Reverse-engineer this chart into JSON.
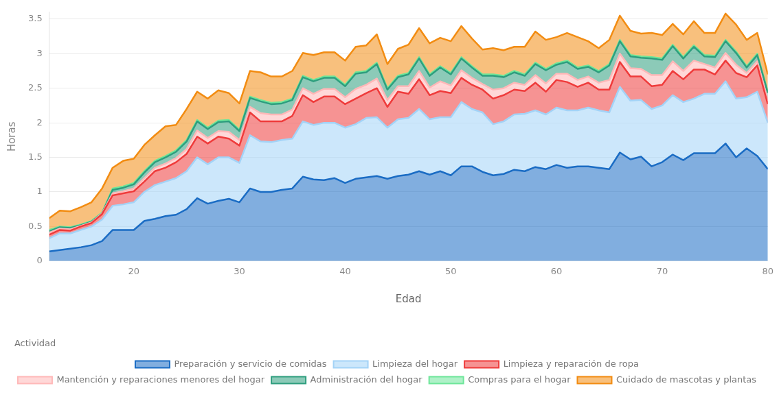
{
  "chart_data": {
    "type": "area",
    "stacked": true,
    "xlabel": "Edad",
    "ylabel": "Horas",
    "legend_title": "Actividad",
    "legend": "bottom",
    "grid": "y",
    "marker": "none",
    "x": [
      12,
      13,
      14,
      15,
      16,
      17,
      18,
      19,
      20,
      21,
      22,
      23,
      24,
      25,
      26,
      27,
      28,
      29,
      30,
      31,
      32,
      33,
      34,
      35,
      36,
      37,
      38,
      39,
      40,
      41,
      42,
      43,
      44,
      45,
      46,
      47,
      48,
      49,
      50,
      51,
      52,
      53,
      54,
      55,
      56,
      57,
      58,
      59,
      60,
      61,
      62,
      63,
      64,
      65,
      66,
      67,
      68,
      69,
      70,
      71,
      72,
      73,
      74,
      75,
      76,
      77,
      78,
      79,
      80
    ],
    "xlim": [
      12,
      80
    ],
    "xticks": [
      20,
      30,
      40,
      50,
      60,
      70,
      80
    ],
    "ylim": [
      0,
      3.6
    ],
    "yticks": [
      0,
      0.5,
      1,
      1.5,
      2,
      2.5,
      3,
      3.5
    ],
    "series": [
      {
        "name": "Preparación y servicio de comidas",
        "color": "#1a6cc4",
        "values": [
          0.14,
          0.16,
          0.18,
          0.2,
          0.23,
          0.29,
          0.45,
          0.45,
          0.45,
          0.58,
          0.61,
          0.65,
          0.67,
          0.75,
          0.91,
          0.83,
          0.87,
          0.9,
          0.85,
          1.05,
          1.0,
          1.0,
          1.03,
          1.05,
          1.22,
          1.18,
          1.17,
          1.2,
          1.13,
          1.19,
          1.21,
          1.23,
          1.19,
          1.23,
          1.25,
          1.3,
          1.25,
          1.3,
          1.24,
          1.37,
          1.37,
          1.29,
          1.24,
          1.26,
          1.32,
          1.3,
          1.36,
          1.33,
          1.39,
          1.35,
          1.37,
          1.37,
          1.35,
          1.33,
          1.57,
          1.47,
          1.51,
          1.37,
          1.43,
          1.54,
          1.46,
          1.56,
          1.56,
          1.56,
          1.7,
          1.5,
          1.63,
          1.52,
          1.33
        ]
      },
      {
        "name": "Limpieza del hogar",
        "color": "#a3d3f7",
        "values": [
          0.19,
          0.24,
          0.22,
          0.25,
          0.27,
          0.31,
          0.35,
          0.37,
          0.4,
          0.42,
          0.49,
          0.5,
          0.53,
          0.55,
          0.59,
          0.57,
          0.63,
          0.6,
          0.57,
          0.77,
          0.73,
          0.72,
          0.72,
          0.72,
          0.8,
          0.79,
          0.83,
          0.8,
          0.8,
          0.79,
          0.86,
          0.85,
          0.74,
          0.82,
          0.82,
          0.9,
          0.8,
          0.78,
          0.84,
          0.93,
          0.83,
          0.86,
          0.74,
          0.76,
          0.8,
          0.83,
          0.82,
          0.79,
          0.83,
          0.83,
          0.81,
          0.85,
          0.83,
          0.82,
          0.95,
          0.85,
          0.82,
          0.83,
          0.82,
          0.86,
          0.84,
          0.79,
          0.86,
          0.86,
          0.9,
          0.85,
          0.74,
          0.93,
          0.67
        ]
      },
      {
        "name": "Limpieza y reparación de ropa",
        "color": "#ef3b3b",
        "values": [
          0.05,
          0.05,
          0.04,
          0.05,
          0.05,
          0.08,
          0.15,
          0.16,
          0.16,
          0.15,
          0.2,
          0.2,
          0.23,
          0.25,
          0.3,
          0.3,
          0.3,
          0.27,
          0.25,
          0.33,
          0.29,
          0.3,
          0.27,
          0.33,
          0.38,
          0.33,
          0.38,
          0.38,
          0.34,
          0.37,
          0.36,
          0.42,
          0.3,
          0.4,
          0.35,
          0.43,
          0.35,
          0.38,
          0.35,
          0.35,
          0.35,
          0.33,
          0.37,
          0.38,
          0.36,
          0.33,
          0.4,
          0.33,
          0.4,
          0.41,
          0.34,
          0.36,
          0.3,
          0.33,
          0.36,
          0.35,
          0.34,
          0.33,
          0.3,
          0.35,
          0.33,
          0.42,
          0.35,
          0.28,
          0.3,
          0.37,
          0.29,
          0.38,
          0.27
        ]
      },
      {
        "name": "Mantención y reparaciones menores del hogar",
        "color": "#ffb8b8",
        "values": [
          0.03,
          0.02,
          0.02,
          0.01,
          0.01,
          0.01,
          0.03,
          0.03,
          0.04,
          0.05,
          0.05,
          0.06,
          0.06,
          0.07,
          0.09,
          0.08,
          0.08,
          0.1,
          0.08,
          0.08,
          0.12,
          0.1,
          0.1,
          0.09,
          0.1,
          0.12,
          0.11,
          0.11,
          0.1,
          0.14,
          0.12,
          0.14,
          0.1,
          0.08,
          0.11,
          0.12,
          0.11,
          0.14,
          0.11,
          0.11,
          0.1,
          0.08,
          0.13,
          0.1,
          0.1,
          0.09,
          0.11,
          0.12,
          0.09,
          0.12,
          0.1,
          0.09,
          0.1,
          0.14,
          0.12,
          0.12,
          0.11,
          0.16,
          0.14,
          0.14,
          0.12,
          0.13,
          0.08,
          0.1,
          0.11,
          0.12,
          0.06,
          0.06,
          0.06
        ]
      },
      {
        "name": "Administración del hogar",
        "color": "#2e9e7e",
        "values": [
          0.02,
          0.02,
          0.02,
          0.01,
          0.01,
          0.0,
          0.05,
          0.05,
          0.06,
          0.08,
          0.08,
          0.09,
          0.09,
          0.11,
          0.13,
          0.13,
          0.13,
          0.15,
          0.13,
          0.13,
          0.17,
          0.15,
          0.16,
          0.14,
          0.16,
          0.18,
          0.16,
          0.16,
          0.16,
          0.22,
          0.18,
          0.21,
          0.15,
          0.13,
          0.17,
          0.18,
          0.17,
          0.2,
          0.16,
          0.17,
          0.15,
          0.12,
          0.2,
          0.16,
          0.15,
          0.13,
          0.16,
          0.19,
          0.13,
          0.17,
          0.16,
          0.14,
          0.15,
          0.21,
          0.18,
          0.17,
          0.16,
          0.24,
          0.22,
          0.22,
          0.18,
          0.2,
          0.11,
          0.15,
          0.17,
          0.17,
          0.08,
          0.09,
          0.1
        ]
      },
      {
        "name": "Compras para el hogar",
        "color": "#6ee69a",
        "values": [
          0.02,
          0.01,
          0.01,
          0.01,
          0.01,
          0.01,
          0.02,
          0.02,
          0.02,
          0.02,
          0.02,
          0.02,
          0.02,
          0.02,
          0.02,
          0.02,
          0.02,
          0.02,
          0.02,
          0.02,
          0.02,
          0.02,
          0.02,
          0.02,
          0.02,
          0.02,
          0.02,
          0.02,
          0.02,
          0.02,
          0.02,
          0.02,
          0.02,
          0.02,
          0.02,
          0.02,
          0.02,
          0.02,
          0.02,
          0.02,
          0.02,
          0.02,
          0.02,
          0.02,
          0.02,
          0.02,
          0.02,
          0.02,
          0.02,
          0.02,
          0.02,
          0.02,
          0.02,
          0.02,
          0.02,
          0.02,
          0.02,
          0.02,
          0.02,
          0.02,
          0.02,
          0.02,
          0.02,
          0.02,
          0.02,
          0.02,
          0.02,
          0.02,
          0.02
        ]
      },
      {
        "name": "Cuidado de mascotas y plantas",
        "color": "#f28c12",
        "values": [
          0.17,
          0.23,
          0.23,
          0.25,
          0.27,
          0.35,
          0.3,
          0.37,
          0.35,
          0.38,
          0.37,
          0.43,
          0.37,
          0.45,
          0.41,
          0.42,
          0.44,
          0.39,
          0.38,
          0.37,
          0.4,
          0.38,
          0.37,
          0.4,
          0.33,
          0.36,
          0.35,
          0.35,
          0.35,
          0.37,
          0.37,
          0.41,
          0.35,
          0.39,
          0.41,
          0.42,
          0.45,
          0.41,
          0.46,
          0.45,
          0.4,
          0.36,
          0.38,
          0.37,
          0.35,
          0.4,
          0.45,
          0.42,
          0.38,
          0.4,
          0.44,
          0.35,
          0.33,
          0.35,
          0.35,
          0.35,
          0.33,
          0.35,
          0.34,
          0.3,
          0.33,
          0.35,
          0.32,
          0.33,
          0.38,
          0.39,
          0.38,
          0.3,
          0.25
        ]
      }
    ]
  }
}
